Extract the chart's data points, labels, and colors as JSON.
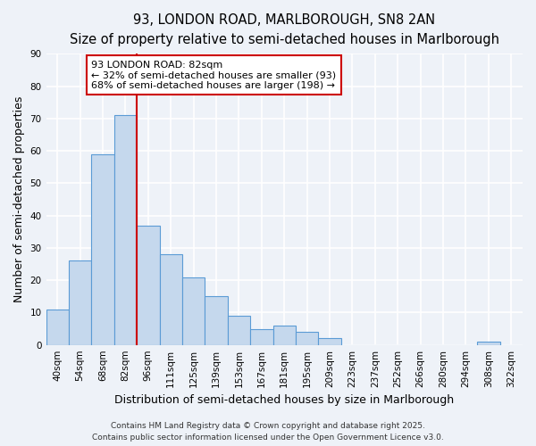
{
  "title": "93, LONDON ROAD, MARLBOROUGH, SN8 2AN",
  "subtitle": "Size of property relative to semi-detached houses in Marlborough",
  "bar_labels": [
    "40sqm",
    "54sqm",
    "68sqm",
    "82sqm",
    "96sqm",
    "111sqm",
    "125sqm",
    "139sqm",
    "153sqm",
    "167sqm",
    "181sqm",
    "195sqm",
    "209sqm",
    "223sqm",
    "237sqm",
    "252sqm",
    "266sqm",
    "280sqm",
    "294sqm",
    "308sqm",
    "322sqm"
  ],
  "bar_values": [
    11,
    26,
    59,
    71,
    37,
    28,
    21,
    15,
    9,
    5,
    6,
    4,
    2,
    0,
    0,
    0,
    0,
    0,
    0,
    1,
    0
  ],
  "bar_color": "#c5d8ed",
  "bar_edge_color": "#5b9bd5",
  "bar_width": 1.0,
  "vline_x": 3.5,
  "vline_color": "#cc0000",
  "xlabel": "Distribution of semi-detached houses by size in Marlborough",
  "ylabel": "Number of semi-detached properties",
  "ylim": [
    0,
    90
  ],
  "yticks": [
    0,
    10,
    20,
    30,
    40,
    50,
    60,
    70,
    80,
    90
  ],
  "annotation_title": "93 LONDON ROAD: 82sqm",
  "annotation_line1": "← 32% of semi-detached houses are smaller (93)",
  "annotation_line2": "68% of semi-detached houses are larger (198) →",
  "annotation_box_color": "#ffffff",
  "annotation_box_edge": "#cc0000",
  "footer1": "Contains HM Land Registry data © Crown copyright and database right 2025.",
  "footer2": "Contains public sector information licensed under the Open Government Licence v3.0.",
  "bg_color": "#eef2f8",
  "grid_color": "#ffffff",
  "title_fontsize": 10.5,
  "subtitle_fontsize": 9,
  "axis_label_fontsize": 9,
  "tick_fontsize": 7.5,
  "footer_fontsize": 6.5,
  "annotation_fontsize": 8
}
